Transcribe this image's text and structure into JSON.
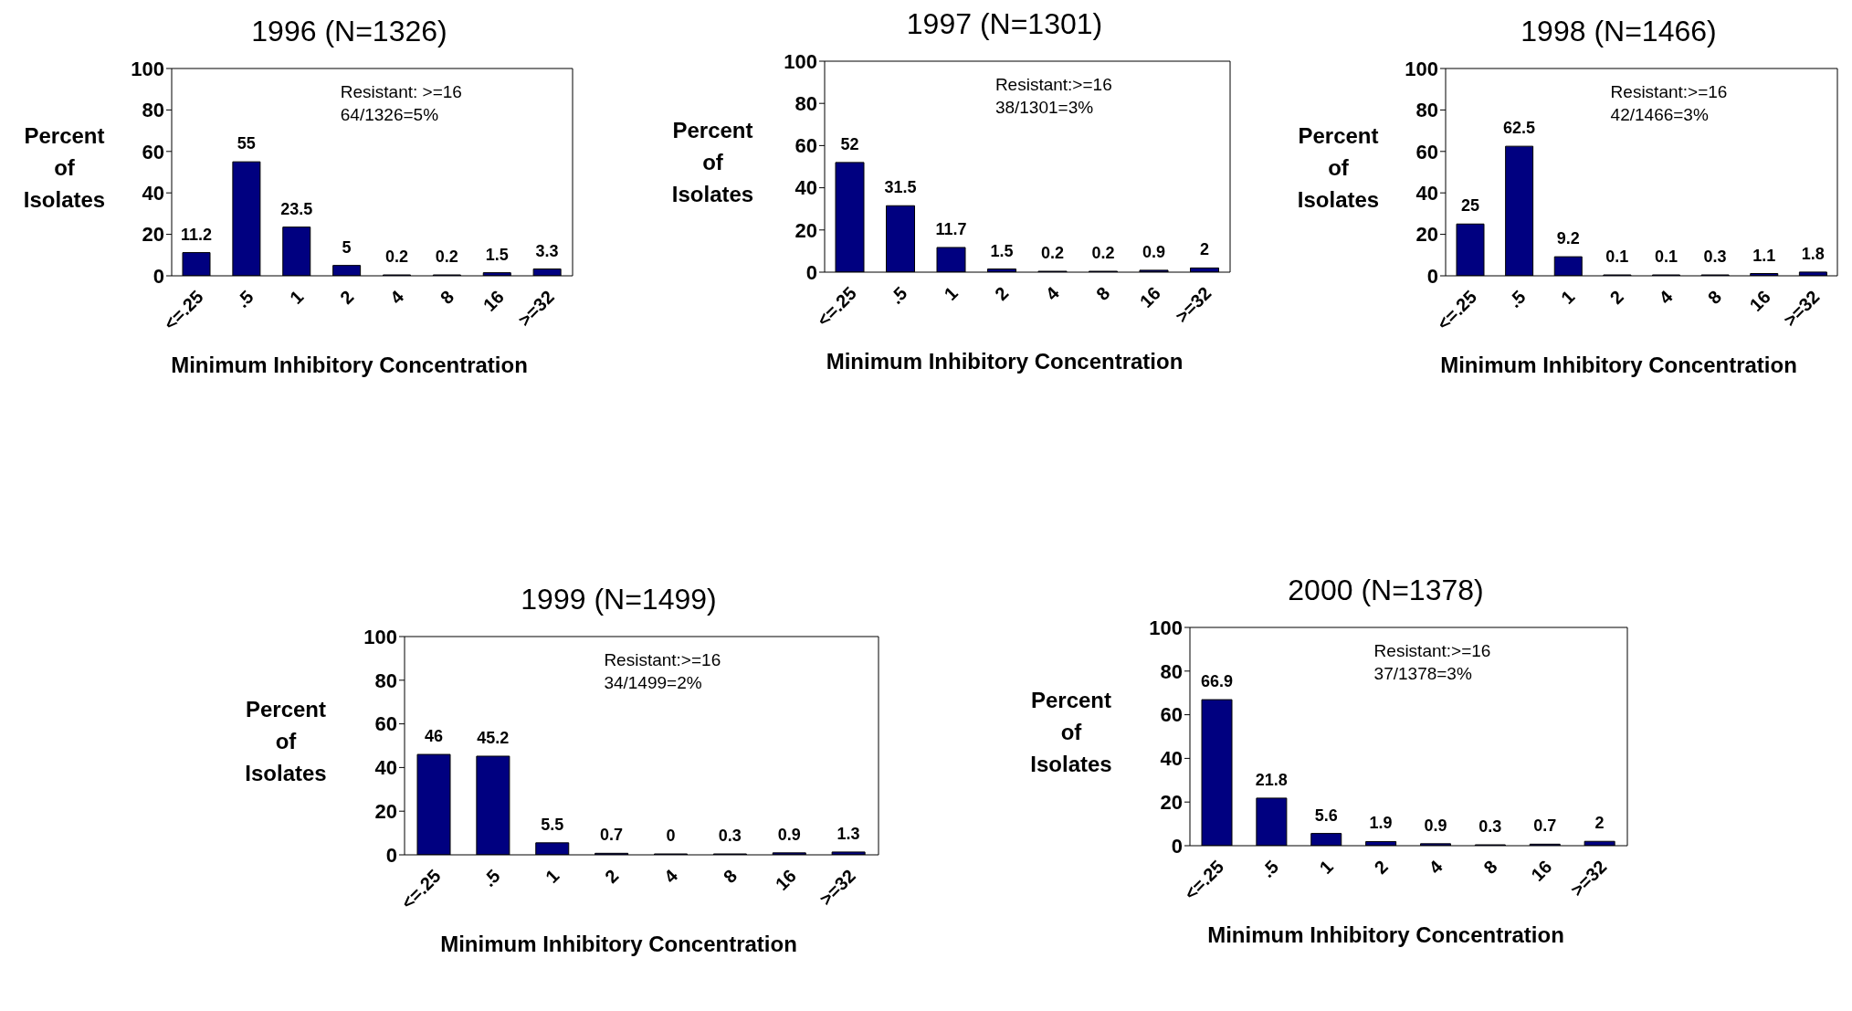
{
  "chart_data": [
    {
      "type": "bar",
      "title": "1996 (N=1326)",
      "xlabel": "Minimum Inhibitory Concentration",
      "ylabel": "Percent of Isolates",
      "annotations": [
        "Resistant: >=16",
        "64/1326=5%"
      ],
      "categories": [
        "<=.25",
        ".5",
        "1",
        "2",
        "4",
        "8",
        "16",
        ">=32"
      ],
      "values": [
        11.2,
        55,
        23.5,
        5,
        0.2,
        0.2,
        1.5,
        3.3
      ],
      "color": "#000080",
      "ylim": [
        0,
        100
      ],
      "yticks": [
        0,
        20,
        40,
        60,
        80,
        100
      ],
      "data_labels": true
    },
    {
      "type": "bar",
      "title": "1997 (N=1301)",
      "xlabel": "Minimum Inhibitory Concentration",
      "ylabel": "Percent of Isolates",
      "annotations": [
        "Resistant:>=16",
        "38/1301=3%"
      ],
      "categories": [
        "<=.25",
        ".5",
        "1",
        "2",
        "4",
        "8",
        "16",
        ">=32"
      ],
      "values": [
        52,
        31.5,
        11.7,
        1.5,
        0.2,
        0.2,
        0.9,
        2
      ],
      "color": "#000080",
      "ylim": [
        0,
        100
      ],
      "yticks": [
        0,
        20,
        40,
        60,
        80,
        100
      ],
      "data_labels": true
    },
    {
      "type": "bar",
      "title": "1998 (N=1466)",
      "xlabel": "Minimum Inhibitory Concentration",
      "ylabel": "Percent of Isolates",
      "annotations": [
        "Resistant:>=16",
        "42/1466=3%"
      ],
      "categories": [
        "<=.25",
        ".5",
        "1",
        "2",
        "4",
        "8",
        "16",
        ">=32"
      ],
      "values": [
        25,
        62.5,
        9.2,
        0.1,
        0.1,
        0.3,
        1.1,
        1.8
      ],
      "color": "#000080",
      "ylim": [
        0,
        100
      ],
      "yticks": [
        0,
        20,
        40,
        60,
        80,
        100
      ],
      "data_labels": true
    },
    {
      "type": "bar",
      "title": "1999 (N=1499)",
      "xlabel": "Minimum Inhibitory Concentration",
      "ylabel": "Percent of Isolates",
      "annotations": [
        "Resistant:>=16",
        "34/1499=2%"
      ],
      "categories": [
        "<=.25",
        ".5",
        "1",
        "2",
        "4",
        "8",
        "16",
        ">=32"
      ],
      "values": [
        46,
        45.2,
        5.5,
        0.7,
        0,
        0.3,
        0.9,
        1.3
      ],
      "color": "#000080",
      "ylim": [
        0,
        100
      ],
      "yticks": [
        0,
        20,
        40,
        60,
        80,
        100
      ],
      "data_labels": true
    },
    {
      "type": "bar",
      "title": "2000 (N=1378)",
      "xlabel": "Minimum Inhibitory Concentration",
      "ylabel": "Percent of Isolates",
      "annotations": [
        "Resistant:>=16",
        "37/1378=3%"
      ],
      "categories": [
        "<=.25",
        ".5",
        "1",
        "2",
        "4",
        "8",
        "16",
        ">=32"
      ],
      "values": [
        66.9,
        21.8,
        5.6,
        1.9,
        0.9,
        0.3,
        0.7,
        2
      ],
      "color": "#000080",
      "ylim": [
        0,
        100
      ],
      "yticks": [
        0,
        20,
        40,
        60,
        80,
        100
      ],
      "data_labels": true
    }
  ]
}
